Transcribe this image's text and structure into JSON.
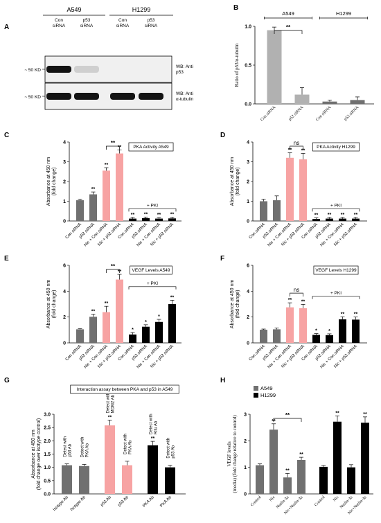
{
  "colors": {
    "gray": "#707070",
    "pink": "#f7a3a3",
    "black": "#000000",
    "lightgray": "#b1b1b1",
    "blot_bg": "#f0f0f0"
  },
  "panelA": {
    "letter": "A",
    "groups": [
      {
        "name": "A549",
        "lanes": [
          "Con siRNA",
          "p53 siRNA"
        ]
      },
      {
        "name": "H1299",
        "lanes": [
          "Con siRNA",
          "p53 siRNA"
        ]
      }
    ],
    "blots": [
      {
        "marker": "~ 50 KD",
        "label": "WB: Anti p53",
        "intensities": [
          1.0,
          0.12,
          0,
          0
        ]
      },
      {
        "marker": "~ 50 KD",
        "label": "WB: Anti α-tubulin",
        "intensities": [
          1.0,
          1.0,
          1.0,
          1.0
        ]
      }
    ]
  },
  "chart_data": [
    {
      "id": "B",
      "type": "bar",
      "letter": "B",
      "categories": [
        "Con siRNA",
        "p53 siRNA",
        "Con siRNA",
        "p53 siRNA"
      ],
      "values": [
        0.95,
        0.12,
        0.03,
        0.05
      ],
      "errors": [
        0.04,
        0.09,
        0.02,
        0.04
      ],
      "colors": [
        "lightgray",
        "lightgray",
        "gray",
        "gray"
      ],
      "title": "",
      "ylabel": "Ratio of p53/α-tubulin",
      "ylim": [
        0,
        1.0
      ],
      "yticks": [
        "0.0",
        "0.5",
        "1.0"
      ],
      "ytick_values": [
        0,
        0.5,
        1.0
      ],
      "group_labels": [
        {
          "text": "A549",
          "from": 0,
          "to": 1
        },
        {
          "text": "H1299",
          "from": 2,
          "to": 3
        }
      ],
      "sig": [
        {
          "from": 0,
          "to": 1,
          "text": "**"
        }
      ],
      "tick_font": "serif"
    },
    {
      "id": "C",
      "type": "bar",
      "letter": "C",
      "categories": [
        "Con siRNA",
        "p53 siRNA",
        "Nic + Con siRNA",
        "Nic + p53 siRNA",
        "Con siRNA",
        "p53 siRNA",
        "Nic + Con siRNA",
        "Nic + p53 siRNA"
      ],
      "values": [
        1.05,
        1.35,
        2.55,
        3.42,
        0.12,
        0.14,
        0.12,
        0.13
      ],
      "errors": [
        0.06,
        0.12,
        0.15,
        0.18,
        0.06,
        0.06,
        0.06,
        0.06
      ],
      "colors": [
        "gray",
        "gray",
        "pink",
        "pink",
        "black",
        "black",
        "black",
        "black"
      ],
      "stars": [
        "",
        "**",
        "**",
        "**",
        "**",
        "**",
        "**",
        "**"
      ],
      "title": "PKA Activity A549",
      "ylabel": "Absorbance at 450 nm (fold change)",
      "ylim": [
        0,
        4
      ],
      "yticks": [
        "0",
        "1",
        "2",
        "3",
        "4"
      ],
      "ytick_values": [
        0,
        1,
        2,
        3,
        4
      ],
      "sig": [
        {
          "from": 2,
          "to": 3,
          "text": "**"
        }
      ],
      "bracket": {
        "text": "+ PKI",
        "from": 4,
        "to": 7,
        "value": 0.62
      }
    },
    {
      "id": "D",
      "type": "bar",
      "letter": "D",
      "categories": [
        "Con siRNA",
        "p53 siRNA",
        "Nic + Con siRNA",
        "Nic + p53 siRNA",
        "Con siRNA",
        "p53 siRNA",
        "Nic + Con siRNA",
        "Nic + p53 siRNA"
      ],
      "values": [
        1.0,
        1.05,
        3.2,
        3.12,
        0.1,
        0.12,
        0.12,
        0.12
      ],
      "errors": [
        0.1,
        0.22,
        0.25,
        0.3,
        0.06,
        0.06,
        0.06,
        0.06
      ],
      "colors": [
        "gray",
        "gray",
        "pink",
        "pink",
        "black",
        "black",
        "black",
        "black"
      ],
      "stars": [
        "",
        "",
        "**",
        "**",
        "**",
        "**",
        "**",
        "**"
      ],
      "title": "PKA Activity H1299",
      "ylabel": "Absorbance at 450 nm (fold change)",
      "ylim": [
        0,
        4
      ],
      "yticks": [
        "0",
        "1",
        "2",
        "3",
        "4"
      ],
      "ytick_values": [
        0,
        1,
        2,
        3,
        4
      ],
      "sig": [
        {
          "from": 2,
          "to": 3,
          "text": "ns"
        }
      ],
      "bracket": {
        "text": "+ PKI",
        "from": 4,
        "to": 7,
        "value": 0.62
      }
    },
    {
      "id": "E",
      "type": "bar",
      "letter": "E",
      "categories": [
        "Con siRNA",
        "p53 siRNA",
        "Nic + Con siRNA",
        "Nic + p53 siRNA",
        "Con siRNA",
        "p53 siRNA",
        "Nic + Con siRNA",
        "Nic + p53 siRNA"
      ],
      "values": [
        1.05,
        2.02,
        2.38,
        4.9,
        0.65,
        1.25,
        1.62,
        3.0
      ],
      "errors": [
        0.05,
        0.2,
        0.45,
        0.4,
        0.15,
        0.15,
        0.2,
        0.3
      ],
      "colors": [
        "gray",
        "gray",
        "pink",
        "pink",
        "black",
        "black",
        "black",
        "black"
      ],
      "stars": [
        "",
        "**",
        "**",
        "**",
        "*",
        "*",
        "*",
        "**"
      ],
      "title": "VEGF Levels A549",
      "ylabel": "Absorbance at 450 nm (fold change)",
      "ylim": [
        0,
        6
      ],
      "yticks": [
        "0",
        "2",
        "4",
        "6"
      ],
      "ytick_values": [
        0,
        2,
        4,
        6
      ],
      "sig": [
        {
          "from": 2,
          "to": 3,
          "text": "**"
        }
      ],
      "bracket": {
        "text": "+ PKI",
        "from": 4,
        "to": 7,
        "value": 4.35
      }
    },
    {
      "id": "F",
      "type": "bar",
      "letter": "F",
      "categories": [
        "Con siRNA",
        "p53 siRNA",
        "Nic + Con siRNA",
        "Nic + p53 siRNA",
        "Con siRNA",
        "p53 siRNA",
        "Nic + Con siRNA",
        "Nic + p53 siRNA"
      ],
      "values": [
        1.02,
        1.05,
        2.75,
        2.68,
        0.62,
        0.6,
        1.82,
        1.8
      ],
      "errors": [
        0.05,
        0.1,
        0.35,
        0.3,
        0.1,
        0.1,
        0.2,
        0.2
      ],
      "colors": [
        "gray",
        "gray",
        "pink",
        "pink",
        "black",
        "black",
        "black",
        "black"
      ],
      "stars": [
        "",
        "",
        "**",
        "**",
        "*",
        "*",
        "**",
        "**"
      ],
      "title": "VEGF Levels H1299",
      "ylabel": "Absorbance at 450 nm (fold change)",
      "ylim": [
        0,
        6
      ],
      "yticks": [
        "0",
        "2",
        "4",
        "6"
      ],
      "ytick_values": [
        0,
        2,
        4,
        6
      ],
      "sig": [
        {
          "from": 2,
          "to": 3,
          "text": "ns"
        }
      ],
      "bracket": {
        "text": "+ PKI",
        "from": 4,
        "to": 7,
        "value": 3.6
      }
    },
    {
      "id": "G",
      "type": "bar",
      "letter": "G",
      "categories": [
        "Isotype Ab",
        "Isotype Ab",
        "p53 Ab",
        "p53 Ab",
        "PKA Ab",
        "PKA Ab"
      ],
      "values": [
        1.08,
        1.05,
        2.58,
        1.08,
        1.83,
        1.0
      ],
      "errors": [
        0.05,
        0.06,
        0.2,
        0.15,
        0.15,
        0.08
      ],
      "colors": [
        "gray",
        "gray",
        "pink",
        "pink",
        "black",
        "black"
      ],
      "stars": [
        "",
        "",
        "**",
        "",
        "**",
        ""
      ],
      "annotations": [
        "Detect with p53 Ab",
        "Detect with PKA Ab",
        "Detect with MDM2 Ab",
        "Detect with PKA Ab",
        "Detect with Ritu Ab",
        "Detect with p53 Ab"
      ],
      "title": "Interaction assay between PKA and p53 in A549",
      "ylabel": "Absorbance at 450 nm (fold change over isotype control)",
      "ylim": [
        0,
        3
      ],
      "yticks": [
        "0.0",
        "0.5",
        "1.0",
        "1.5",
        "2.0",
        "2.5",
        "3.0"
      ],
      "ytick_values": [
        0,
        0.5,
        1,
        1.5,
        2,
        2.5,
        3
      ],
      "gaps": [
        2,
        4
      ]
    },
    {
      "id": "H",
      "type": "bar",
      "letter": "H",
      "categories": [
        "Control",
        "Nic",
        "Nutlin-3a",
        "Nic+Nutlin-3a",
        "Control",
        "Nic",
        "Nutlin-3a",
        "Nic+Nutlin-3a"
      ],
      "values": [
        1.08,
        2.42,
        0.62,
        1.28,
        1.02,
        2.72,
        1.0,
        2.68
      ],
      "errors": [
        0.05,
        0.22,
        0.15,
        0.1,
        0.05,
        0.22,
        0.1,
        0.22
      ],
      "colors": [
        "gray",
        "gray",
        "gray",
        "gray",
        "black",
        "black",
        "black",
        "black"
      ],
      "stars": [
        "",
        "**",
        "**",
        "**",
        "",
        "**",
        "",
        "**"
      ],
      "legend": [
        {
          "name": "A549",
          "color": "gray"
        },
        {
          "name": "H1299",
          "color": "black"
        }
      ],
      "title": "",
      "ylabel": "VEGF levels (media) (fold change relative to control)",
      "ylim": [
        0,
        3
      ],
      "yticks": [
        "0",
        "1",
        "2",
        "3"
      ],
      "ytick_values": [
        0,
        1,
        2,
        3
      ],
      "sig": [
        {
          "from": 1,
          "to": 3,
          "text": "**"
        }
      ],
      "gaps": [
        4
      ],
      "tick_font": "serif"
    }
  ]
}
